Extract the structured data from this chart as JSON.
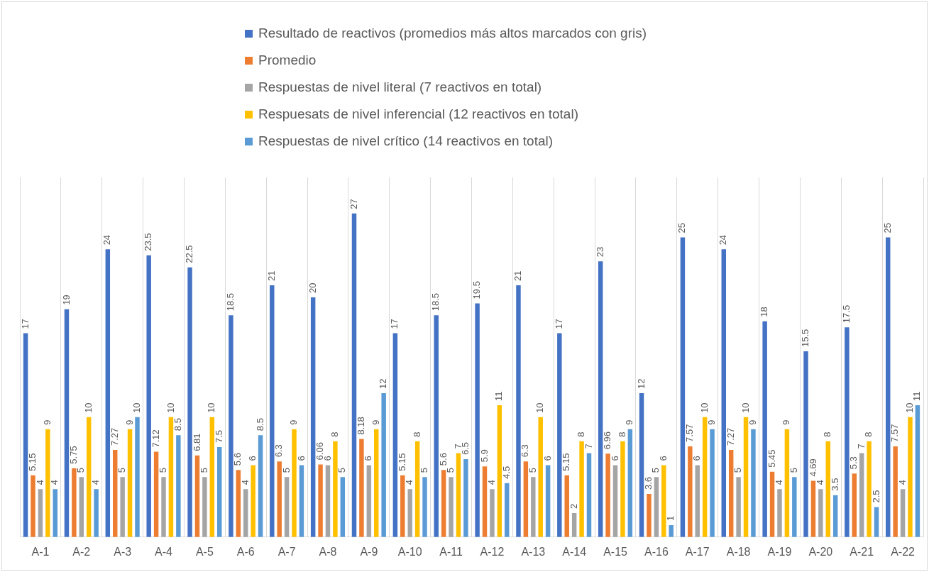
{
  "chart_data": {
    "type": "bar",
    "categories": [
      "A-1",
      "A-2",
      "A-3",
      "A-4",
      "A-5",
      "A-6",
      "A-7",
      "A-8",
      "A-9",
      "A-10",
      "A-11",
      "A-12",
      "A-13",
      "A-14",
      "A-15",
      "A-16",
      "A-17",
      "A-18",
      "A-19",
      "A-20",
      "A-21",
      "A-22"
    ],
    "series": [
      {
        "name": "Resultado de reactivos (promedios más altos marcados con gris)",
        "color": "#4472c4",
        "values": [
          17,
          19,
          24,
          23.5,
          22.5,
          18.5,
          21,
          20,
          27,
          17,
          18.5,
          19.5,
          21,
          17,
          23,
          12,
          25,
          24,
          18,
          15.5,
          17.5,
          25
        ]
      },
      {
        "name": "Promedio",
        "color": "#ed7d31",
        "values": [
          5.15,
          5.75,
          7.27,
          7.12,
          6.81,
          5.6,
          6.3,
          6.06,
          8.18,
          5.15,
          5.6,
          5.9,
          6.3,
          5.15,
          6.96,
          3.6,
          7.57,
          7.27,
          5.45,
          4.69,
          5.3,
          7.57
        ]
      },
      {
        "name": "Respuestas de nivel literal (7 reactivos en total)",
        "color": "#a5a5a5",
        "values": [
          4,
          5,
          5,
          5,
          5,
          4,
          5,
          6,
          6,
          4,
          5,
          4,
          5,
          2,
          6,
          5,
          6,
          5,
          4,
          4,
          7,
          4
        ]
      },
      {
        "name": "Respuesats de nivel inferencial (12 reactivos en total)",
        "color": "#ffc000",
        "values": [
          9,
          10,
          9,
          10,
          10,
          6,
          9,
          8,
          9,
          8,
          7,
          11,
          10,
          8,
          8,
          6,
          10,
          10,
          9,
          8,
          8,
          10
        ]
      },
      {
        "name": "Respuestas de nivel crítico (14 reactivos en total)",
        "color": "#5b9bd5",
        "values": [
          4,
          4,
          10,
          8.5,
          7.5,
          8.5,
          6,
          5,
          12,
          5,
          6.5,
          4.5,
          6,
          7,
          9,
          1,
          9,
          9,
          5,
          3.5,
          2.5,
          11
        ]
      }
    ],
    "data_labels": true,
    "grid": "x",
    "legend": "top"
  }
}
